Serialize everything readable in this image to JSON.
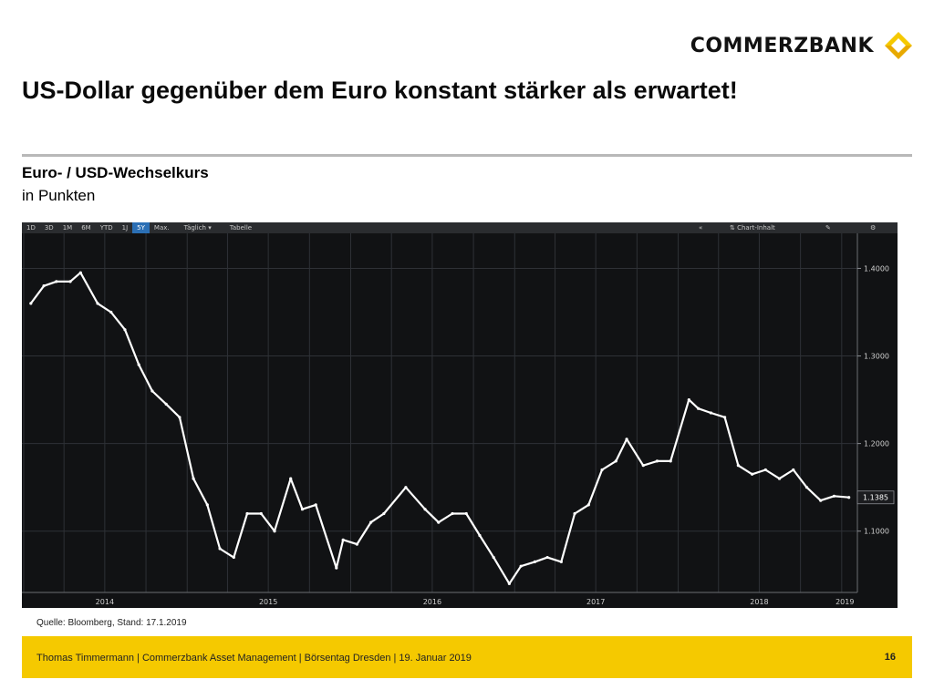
{
  "header": {
    "logo_text": "COMMERZBANK",
    "title": "US-Dollar gegenüber dem Euro konstant stärker als erwartet!"
  },
  "chart_header": {
    "subtitle": "Euro- / USD-Wechselkurs",
    "unit": "in Punkten"
  },
  "toolbar": {
    "ranges": [
      "1D",
      "3D",
      "1M",
      "6M",
      "YTD",
      "1J",
      "5Y",
      "Max."
    ],
    "active_range": "5Y",
    "frequency": "Täglich",
    "table_label": "Tabelle",
    "collapse_icon": "double-chevron-left-icon",
    "chart_content_label": "Chart-Inhalt",
    "edit_icon": "edit-icon",
    "settings_icon": "gear-icon"
  },
  "chart_data": {
    "type": "line",
    "title": "",
    "xlabel": "",
    "ylabel": "",
    "x_ticks": [
      "2014",
      "2015",
      "2016",
      "2017",
      "2018",
      "2019"
    ],
    "y_ticks": [
      "1.4000",
      "1.3000",
      "1.2000",
      "1.1000"
    ],
    "ylim": [
      1.03,
      1.44
    ],
    "grid": true,
    "last_value": "1.1385",
    "series": [
      {
        "x": [
          "2014-01-17",
          "2014-02-15",
          "2014-03-15",
          "2014-04-15",
          "2014-05-08",
          "2014-06-15",
          "2014-07-15",
          "2014-08-15",
          "2014-09-15",
          "2014-10-15",
          "2014-11-15",
          "2014-12-15",
          "2015-01-15",
          "2015-02-15",
          "2015-03-15",
          "2015-04-15",
          "2015-05-15",
          "2015-06-15",
          "2015-07-15",
          "2015-08-20",
          "2015-09-15",
          "2015-10-15",
          "2015-11-30",
          "2015-12-15",
          "2016-01-15",
          "2016-02-15",
          "2016-03-15",
          "2016-05-03",
          "2016-06-15",
          "2016-07-15",
          "2016-08-15",
          "2016-09-15",
          "2016-10-15",
          "2016-11-15",
          "2016-12-20",
          "2017-01-15",
          "2017-02-15",
          "2017-03-15",
          "2017-04-15",
          "2017-05-15",
          "2017-06-15",
          "2017-07-15",
          "2017-08-15",
          "2017-09-08",
          "2017-10-15",
          "2017-11-15",
          "2017-12-15",
          "2018-01-25",
          "2018-02-15",
          "2018-03-15",
          "2018-04-15",
          "2018-05-15",
          "2018-06-15",
          "2018-07-15",
          "2018-08-15",
          "2018-09-15",
          "2018-10-15",
          "2018-11-15",
          "2018-12-15",
          "2019-01-17"
        ],
        "values": [
          1.36,
          1.38,
          1.385,
          1.385,
          1.395,
          1.36,
          1.35,
          1.33,
          1.29,
          1.26,
          1.245,
          1.23,
          1.16,
          1.13,
          1.08,
          1.07,
          1.12,
          1.12,
          1.1,
          1.16,
          1.125,
          1.13,
          1.058,
          1.09,
          1.085,
          1.11,
          1.12,
          1.15,
          1.125,
          1.11,
          1.12,
          1.12,
          1.095,
          1.07,
          1.04,
          1.06,
          1.065,
          1.07,
          1.065,
          1.12,
          1.13,
          1.17,
          1.18,
          1.205,
          1.175,
          1.18,
          1.18,
          1.25,
          1.24,
          1.235,
          1.23,
          1.175,
          1.165,
          1.17,
          1.16,
          1.17,
          1.15,
          1.135,
          1.14,
          1.1385
        ]
      }
    ]
  },
  "source": "Quelle: Bloomberg, Stand: 17.1.2019",
  "footer": {
    "text": "Thomas Timmermann | Commerzbank Asset Management | Börsentag Dresden | 19. Januar 2019",
    "page": "16"
  },
  "colors": {
    "brand_yellow": "#f5c900",
    "chart_bg": "#111214",
    "line": "#ffffff",
    "grid": "#2e3136"
  }
}
